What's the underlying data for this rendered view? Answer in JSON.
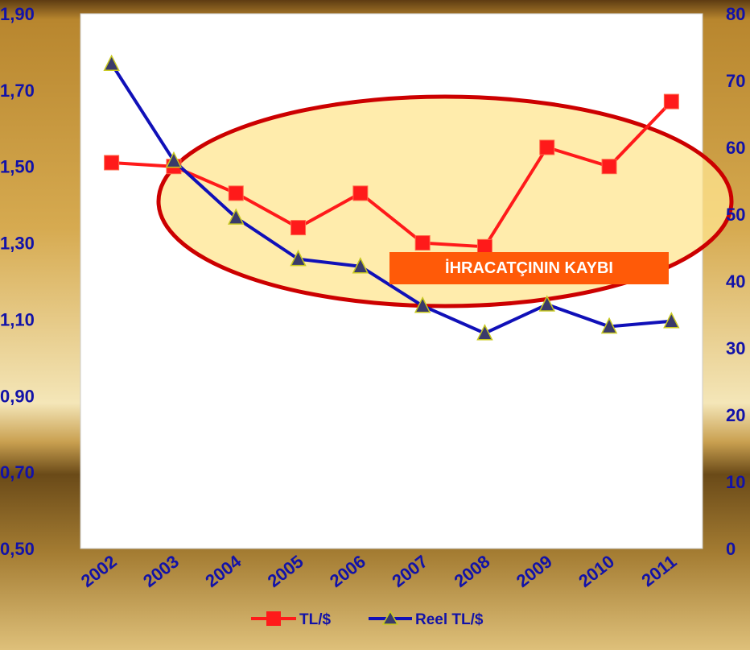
{
  "chart_data": {
    "type": "line",
    "categories": [
      "2002",
      "2003",
      "2004",
      "2005",
      "2006",
      "2007",
      "2008",
      "2009",
      "2010",
      "2011"
    ],
    "series": [
      {
        "name": "TL/$",
        "axis": "left",
        "color": "#ff1a1a",
        "marker": "square",
        "values": [
          1.51,
          1.5,
          1.43,
          1.34,
          1.43,
          1.3,
          1.29,
          1.55,
          1.5,
          1.67
        ]
      },
      {
        "name": "Reel TL/$",
        "axis": "right",
        "color": "#1010b8",
        "marker": "triangle",
        "values": [
          72.5,
          58,
          49.5,
          43.3,
          42.2,
          36.3,
          32.2,
          36.5,
          33.2,
          34
        ]
      }
    ],
    "y_left": {
      "min": 0.5,
      "max": 1.9,
      "ticks": [
        "0,50",
        "0,70",
        "0,90",
        "1,10",
        "1,30",
        "1,50",
        "1,70",
        "1,90"
      ]
    },
    "y_right": {
      "min": 0,
      "max": 80,
      "ticks": [
        "0",
        "10",
        "20",
        "30",
        "40",
        "50",
        "60",
        "70",
        "80"
      ]
    },
    "annotation": {
      "text": "İHRACATÇININ KAYBI",
      "color": "#ff5a08",
      "text_color": "#ffffff"
    },
    "legend": {
      "position": "bottom-center"
    },
    "grid": false
  },
  "colors": {
    "background_gradient": [
      "#5e3c12",
      "#c09038",
      "#f6ecc6"
    ],
    "label_color": "#1212a8",
    "plot_background": "#ffffff",
    "highlight_ellipse_fill": "#ffe690",
    "highlight_ellipse_stroke": "#cc0000"
  }
}
